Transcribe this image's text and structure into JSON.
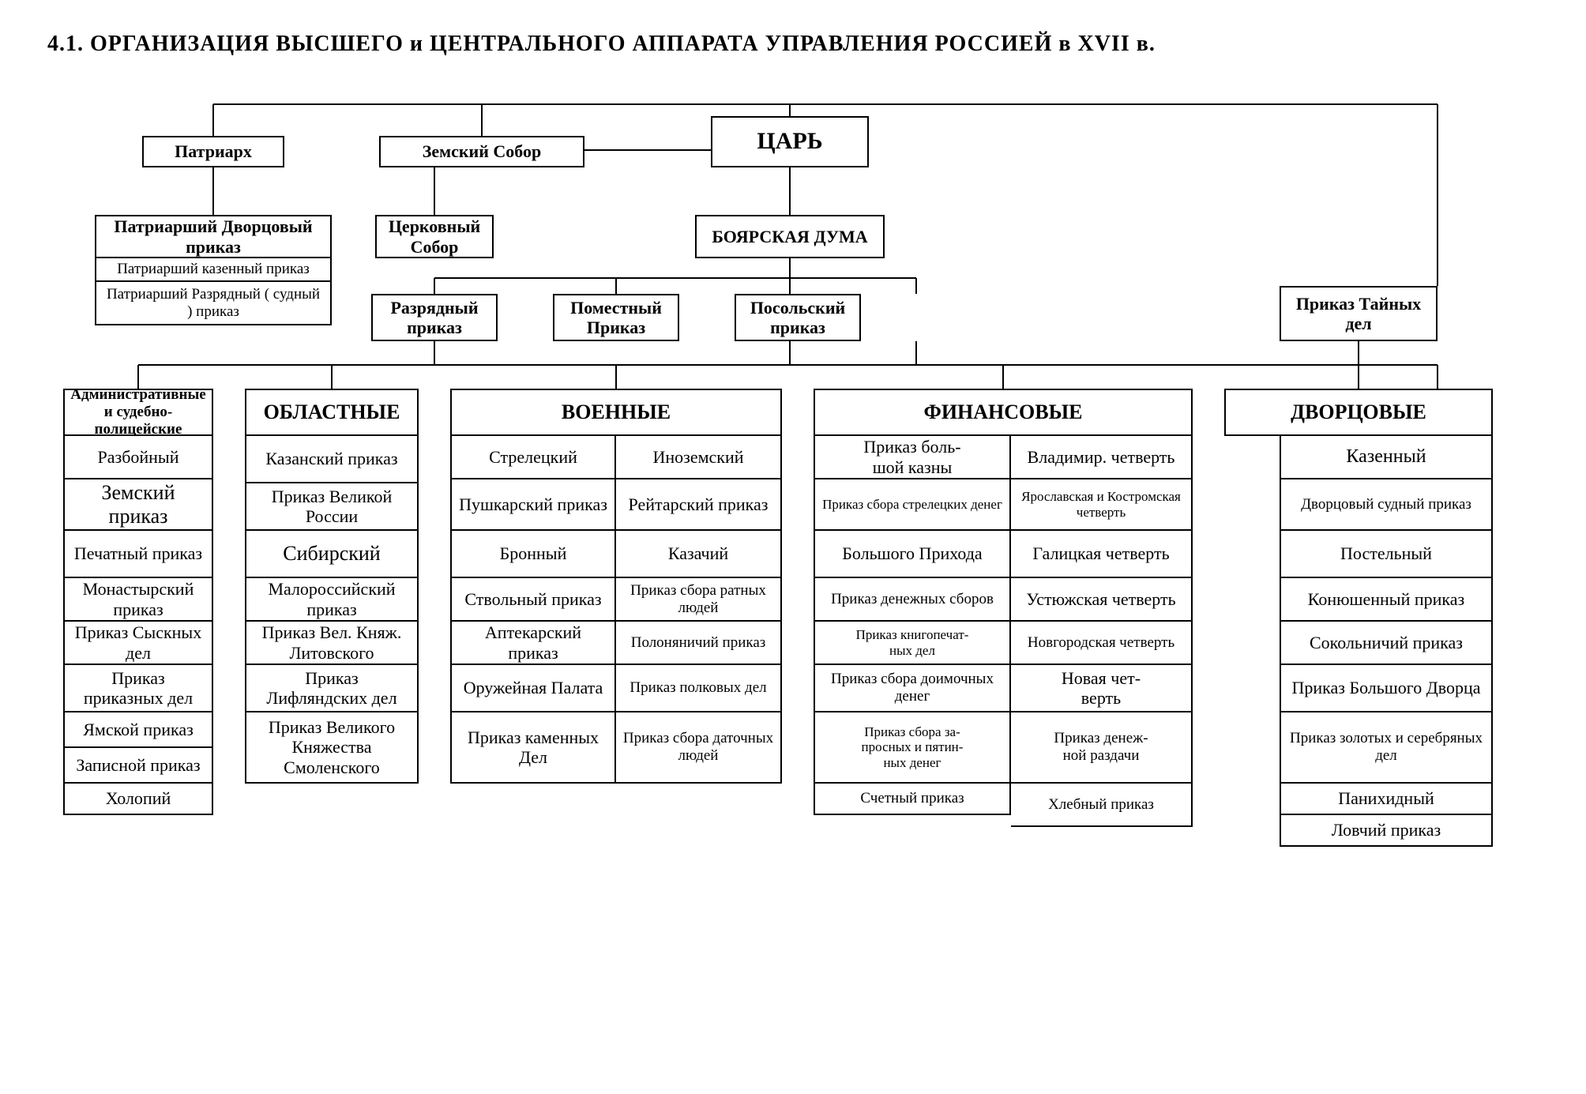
{
  "title": "4.1. ОРГАНИЗАЦИЯ  ВЫСШЕГО и ЦЕНТРАЛЬНОГО АППАРАТА  УПРАВЛЕНИЯ  РОССИЕЙ  в XVII в.",
  "top": {
    "tsar": "ЦАРЬ",
    "patriarch": "Патриарх",
    "zemsky_sobor": "Земский  Собор",
    "tserkovny_sobor": "Церковный Собор",
    "boyar_duma": "БОЯРСКАЯ ДУМА",
    "razryadny": "Разрядный приказ",
    "pomestny": "Поместный Приказ",
    "posolsky": "Посольский приказ",
    "tainykh_del": "Приказ Тайных   дел"
  },
  "patriarch_block": {
    "header": "Патриарший Дворцовый  приказ",
    "row1": "Патриарший казенный  приказ",
    "row2": "Патриарший  Разрядный ( судный ) приказ"
  },
  "columns": {
    "admin": {
      "header": "Административные и судебно-полицейские",
      "rows": [
        "Разбойный",
        "Земский приказ",
        "Печатный приказ",
        "Монастырский приказ",
        "Приказ Сыскных   дел",
        "Приказ приказных дел",
        "Ямской приказ",
        "Записной  приказ",
        "Холопий"
      ]
    },
    "oblast": {
      "header": "ОБЛАСТНЫЕ",
      "rows": [
        "Казанский приказ",
        "Приказ Великой России",
        "Сибирский",
        "Малороссийский приказ",
        "Приказ Вел. Княж. Литовского",
        "Приказ Лифляндских   дел",
        "Приказ Великого Княжества Смоленского"
      ]
    },
    "military": {
      "header": "ВОЕННЫЕ",
      "left": [
        "Стрелецкий",
        "Пушкарский приказ",
        "Бронный",
        "Ствольный приказ",
        "Аптекарский приказ",
        "Оружейная Палата",
        "Приказ каменных Дел"
      ],
      "right": [
        "Иноземский",
        "Рейтарский приказ",
        "Казачий",
        "Приказ сбора ратных людей",
        "Полоняничий приказ",
        "Приказ полковых дел",
        "Приказ сбора даточных людей"
      ]
    },
    "finance": {
      "header": "ФИНАНСОВЫЕ",
      "left": [
        "Приказ боль-\nшой казны",
        "Приказ сбора стрелецких  денег",
        "Большого Прихода",
        "Приказ денежных сборов",
        "Приказ книгопечат-\nных дел",
        "Приказ сбора доимочных денег",
        "Приказ сбора за-\nпросных  и пятин-\nных  денег",
        "Счетный  приказ"
      ],
      "right": [
        "Владимир. четверть",
        "Ярославская и Костромская четверть",
        "Галицкая четверть",
        "Устюжская четверть",
        "Новгородская четверть",
        "Новая чет-\nверть",
        "Приказ денеж-\nной раздачи",
        "Хлебный приказ"
      ]
    },
    "palace": {
      "header": "ДВОРЦОВЫЕ",
      "rows": [
        "Казенный",
        "Дворцовый судный приказ",
        "Постельный",
        "Конюшенный приказ",
        "Сокольничий приказ",
        "Приказ Большого Дворца",
        "Приказ  золотых и серебряных  дел",
        "Панихидный",
        "Ловчий  приказ"
      ]
    }
  }
}
